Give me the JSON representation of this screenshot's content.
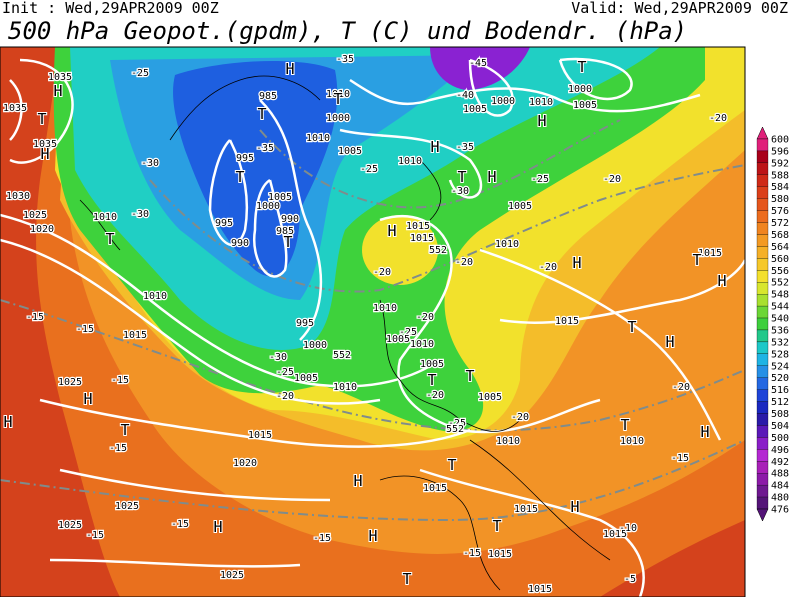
{
  "header": {
    "init": "Init : Wed,29APR2009 00Z",
    "valid": "Valid: Wed,29APR2009 00Z",
    "title": "500 hPa Geopot.(gpdm), T (C) und Bodendr. (hPa)"
  },
  "colorbar": [
    600,
    596,
    592,
    588,
    584,
    580,
    576,
    572,
    568,
    564,
    560,
    556,
    552,
    548,
    544,
    540,
    536,
    532,
    528,
    524,
    520,
    516,
    512,
    508,
    504,
    500,
    496,
    492,
    488,
    484,
    480,
    476
  ],
  "labels": [
    "1035",
    "H",
    "1035",
    "T",
    "1035",
    "H",
    "1030",
    "1025",
    "1020",
    "1010",
    "T",
    "-25",
    "H",
    "-35",
    "985",
    "T",
    "-35",
    "995",
    "T",
    "1005",
    "1000",
    "990",
    "985",
    "T",
    "995",
    "990",
    "-30",
    "-30",
    "1010",
    "-15",
    "-15",
    "1015",
    "1025",
    "-15",
    "H",
    "H",
    "T",
    "-15",
    "1020",
    "1015",
    "1025",
    "1025",
    "-15",
    "-15",
    "H",
    "-15",
    "1025",
    "995",
    "1000",
    "-30",
    "-25",
    "1005",
    "-20",
    "1010",
    "1010",
    "T",
    "1000",
    "1010",
    "1005",
    "-25",
    "1010",
    "H",
    "-35",
    "-45",
    "-40",
    "1005",
    "1000",
    "1010",
    "H",
    "T",
    "1000",
    "1005",
    "T",
    "-30",
    "H",
    "-25",
    "1005",
    "-20",
    "H",
    "1015",
    "1015",
    "1010",
    "-20",
    "-20",
    "H",
    "-20",
    "1010",
    "-20",
    "1015",
    "T",
    "-25",
    "1005",
    "1010",
    "H",
    "1005",
    "T",
    "T",
    "-20",
    "1005",
    "-25",
    "1010",
    "-20",
    "-20",
    "T",
    "1010",
    "H",
    "-15",
    "T",
    "1015",
    "H",
    "T",
    "1015",
    "-15",
    "1015",
    "H",
    "T",
    "1015",
    "1015",
    "-10",
    "-5",
    "1015",
    "T",
    "H",
    "-20",
    "H",
    "552",
    "552",
    "552"
  ]
}
